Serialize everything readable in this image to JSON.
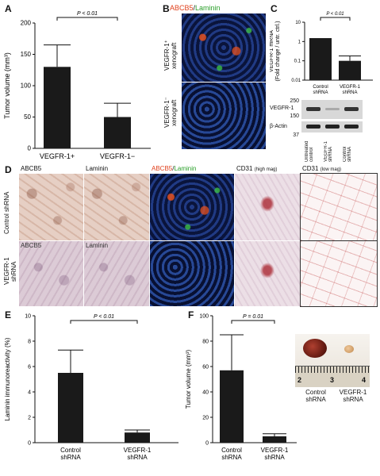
{
  "panels": {
    "A": "A",
    "B": "B",
    "C": "C",
    "D": "D",
    "E": "E",
    "F": "F"
  },
  "colors": {
    "bar": "#1a1a1a",
    "red": "#e0401c",
    "green": "#2aa02a"
  },
  "chart_data": [
    {
      "id": "A",
      "type": "bar",
      "categories": [
        "VEGFR-1+",
        "VEGFR-1−"
      ],
      "values": [
        130,
        50
      ],
      "errors": [
        35,
        22
      ],
      "ylabel": "Tumor volume (mm³)",
      "ylim": [
        0,
        200
      ],
      "yticks": [
        0,
        50,
        100,
        150,
        200
      ],
      "significance": "P < 0.01"
    },
    {
      "id": "C",
      "type": "bar",
      "scale": "log",
      "categories": [
        "Control shRNA",
        "VEGFR-1 shRNA"
      ],
      "values": [
        1.5,
        0.1
      ],
      "errors": [
        0,
        0.08
      ],
      "ylabel": "VEGFR-1 mRNA (Fold change / untr. ctrl.)",
      "ylim": [
        0.01,
        10
      ],
      "yticks": [
        "0.01",
        "0.1",
        "1",
        "10"
      ],
      "significance": "P < 0.01"
    },
    {
      "id": "E",
      "type": "bar",
      "categories": [
        "Control shRNA",
        "VEGFR-1 shRNA"
      ],
      "values": [
        5.5,
        0.8
      ],
      "errors": [
        1.8,
        0.2
      ],
      "ylabel": "Laminin immunoreactivity (%)",
      "ylim": [
        0,
        10
      ],
      "yticks": [
        0,
        2,
        4,
        6,
        8,
        10
      ],
      "significance": "P < 0.01"
    },
    {
      "id": "F",
      "type": "bar",
      "categories": [
        "Control shRNA",
        "VEGFR-1 shRNA"
      ],
      "values": [
        57,
        5
      ],
      "errors": [
        28,
        2
      ],
      "ylabel": "Tumor volume (mm³)",
      "ylim": [
        0,
        100
      ],
      "yticks": [
        0,
        20,
        40,
        60,
        80,
        100
      ],
      "significance": "P = 0.01"
    }
  ],
  "panelB": {
    "stain_red": "ABCB5",
    "slash": "/",
    "stain_green": "Laminin",
    "row1": "VEGFR-1⁺ xenograft",
    "row2": "VEGFR-1⁻ xenograft"
  },
  "panelC_blot": {
    "marker_top": "250",
    "marker_mid": "150",
    "marker_bot": "37",
    "band1": "VEGFR-1",
    "band2": "β-Actin",
    "lanes": [
      "Untreated control",
      "VEGFR-1 shRNA",
      "Control shRNA"
    ]
  },
  "panelD": {
    "col1": "ABCB5",
    "col2": "Laminin",
    "col3_red": "ABCB5",
    "col3_green": "Laminin",
    "col4": "CD31",
    "col4_sub": "(high mag)",
    "col5": "CD31",
    "col5_sub": "(low mag)",
    "row1": "Control shRNA",
    "row2": "VEGFR-1 shRNA"
  },
  "panelF_photo": {
    "ruler": [
      "2",
      "3",
      "4"
    ],
    "label1": "Control shRNA",
    "label2": "VEGFR-1 shRNA"
  }
}
